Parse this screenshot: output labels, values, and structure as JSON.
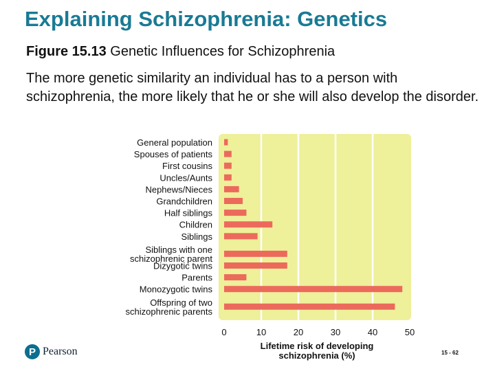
{
  "slide": {
    "title": "Explaining Schizophrenia: Genetics",
    "figure_number": "Figure 15.13",
    "figure_title": "Genetic Influences for Schizophrenia",
    "body": "The more genetic similarity an individual has to a person with schizophrenia, the more likely that he or she will also develop the disorder.",
    "publisher": "Pearson",
    "slide_number": "15 - 62"
  },
  "colors": {
    "title": "#1a7a94",
    "plot_bg": "#eef09a",
    "bar": "#ec6a5c",
    "grid": "#ffffff"
  },
  "chart_data": {
    "type": "bar",
    "orientation": "horizontal",
    "categories": [
      [
        "General population"
      ],
      [
        "Spouses of patients"
      ],
      [
        "First cousins"
      ],
      [
        "Uncles/Aunts"
      ],
      [
        "Nephews/Nieces"
      ],
      [
        "Grandchildren"
      ],
      [
        "Half siblings"
      ],
      [
        "Children"
      ],
      [
        "Siblings"
      ],
      [
        "Siblings with one",
        "schizophrenic parent"
      ],
      [
        "Dizygotic twins"
      ],
      [
        "Parents"
      ],
      [
        "Monozygotic twins"
      ],
      [
        "Offspring of two",
        "schizophrenic parents"
      ]
    ],
    "values": [
      1,
      2,
      2,
      2,
      4,
      5,
      6,
      13,
      9,
      17,
      17,
      6,
      48,
      46
    ],
    "xlim": [
      0,
      50
    ],
    "xticks": [
      "0",
      "10",
      "20",
      "30",
      "40",
      "50"
    ],
    "xlabel": [
      "Lifetime risk of developing",
      "schizophrenia (%)"
    ],
    "grid": true
  }
}
